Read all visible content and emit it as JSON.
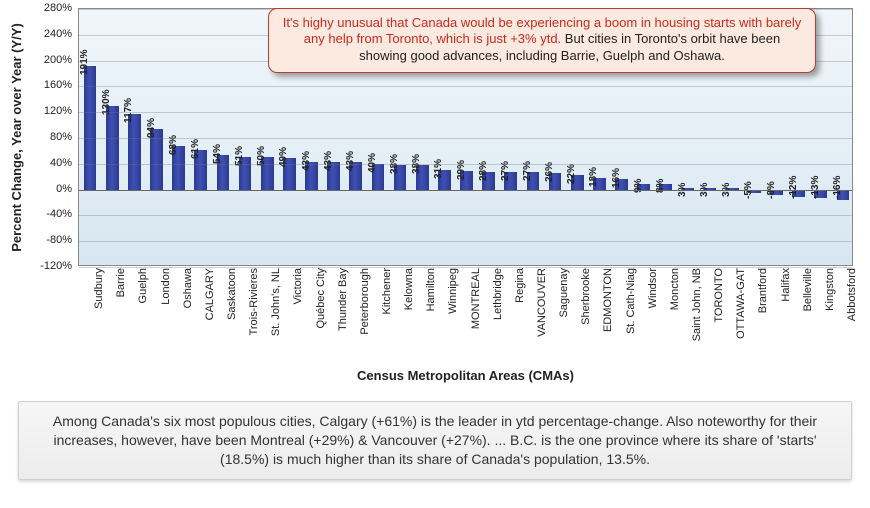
{
  "chart": {
    "type": "bar",
    "yaxis_title": "Percent Change,\nYear over Year (Y/Y)",
    "xaxis_title": "Census Metropolitan Areas (CMAs)",
    "ylim_min": -120,
    "ylim_max": 280,
    "ytick_step": 40,
    "yticks": [
      -120,
      -80,
      -40,
      0,
      40,
      80,
      120,
      160,
      200,
      240,
      280
    ],
    "ytick_labels": [
      "-120%",
      "-80%",
      "-40%",
      "0%",
      "40%",
      "80%",
      "120%",
      "160%",
      "200%",
      "240%",
      "280%"
    ],
    "baseline": 0,
    "bar_color": "#33449e",
    "background_gradient": [
      "#f0f6fb",
      "#d7e6f1"
    ],
    "grid_color": "rgba(120,120,120,0.35)",
    "label_fontsize": 10,
    "axis_fontsize": 11,
    "title_fontsize": 13,
    "bar_width_ratio": 0.58,
    "categories": [
      "Sudbury",
      "Barrie",
      "Guelph",
      "London",
      "Oshawa",
      "CALGARY",
      "Saskatoon",
      "Trois-Rivieres",
      "St. John's, NL",
      "Victoria",
      "Québec City",
      "Thunder Bay",
      "Peterborough",
      "Kitchener",
      "Kelowna",
      "Hamilton",
      "Winnipeg",
      "MONTREAL",
      "Lethbridge",
      "Regina",
      "VANCOUVER",
      "Saguenay",
      "Sherbrooke",
      "EDMONTON",
      "St. Cath-Niag",
      "Windsor",
      "Moncton",
      "Saint John, NB",
      "TORONTO",
      "OTTAWA-GAT",
      "Brantford",
      "Halifax",
      "Belleville",
      "Kingston",
      "Abbotsford"
    ],
    "values": [
      191,
      130,
      117,
      94,
      68,
      61,
      54,
      51,
      50,
      49,
      43,
      43,
      43,
      40,
      38,
      38,
      31,
      29,
      28,
      27,
      27,
      26,
      22,
      18,
      16,
      9,
      8,
      3,
      3,
      3,
      -5,
      -8,
      -12,
      -13,
      -16
    ],
    "value_labels": [
      "191%",
      "130%",
      "117%",
      "94%",
      "68%",
      "61%",
      "54%",
      "51%",
      "50%",
      "49%",
      "43%",
      "43%",
      "43%",
      "40%",
      "38%",
      "38%",
      "31%",
      "29%",
      "28%",
      "27%",
      "27%",
      "26%",
      "22%",
      "18%",
      "16%",
      "9%",
      "8%",
      "3%",
      "3%",
      "3%",
      "-5%",
      "-8%",
      "-12%",
      "-13%",
      "-16%"
    ]
  },
  "callout": {
    "text_red": "It's highy unusual that Canada would be experiencing a boom in housing starts with barely any help from Toronto, which is just +3% ytd.",
    "text_black": " But cities in Toronto's orbit have been showing good advances, including Barrie, Guelph and Oshawa.",
    "border_color": "#b83d2b",
    "background_color": "#fce9e0",
    "red_color": "#c62d1f"
  },
  "bottom_note": {
    "text": "Among Canada's six most populous cities, Calgary (+61%) is the leader in ytd percentage-change. Also noteworthy for their increases, however, have been Montreal (+29%) & Vancouver (+27%). ... B.C. is the one province where its share of 'starts' (18.5%) is much higher than its share of Canada's population, 13.5%.",
    "background_gradient": [
      "#f6f6f6",
      "#ececec"
    ],
    "border_color": "#d0d0d0"
  }
}
